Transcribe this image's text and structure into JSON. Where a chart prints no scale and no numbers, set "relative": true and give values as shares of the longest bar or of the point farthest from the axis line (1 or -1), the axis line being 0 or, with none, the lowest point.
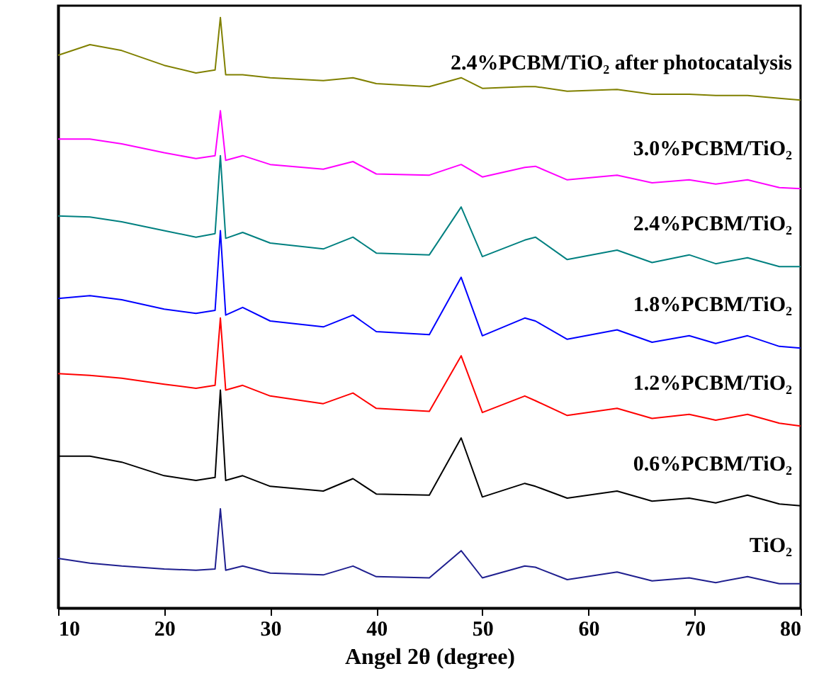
{
  "chart_data": {
    "type": "line",
    "relative": true,
    "xlabel": "Angel 2θ (degree)",
    "xlim": [
      10,
      80
    ],
    "xticks": [
      10,
      20,
      30,
      40,
      50,
      60,
      70,
      80
    ],
    "legend": false,
    "grid": false,
    "marker": "none",
    "line_style": "solid",
    "x": [
      10,
      13,
      16,
      20,
      23,
      24.8,
      25.3,
      25.8,
      27.4,
      30,
      35,
      37.8,
      40,
      45,
      48,
      50,
      54,
      55,
      58,
      62.7,
      66,
      69.5,
      72,
      75,
      78,
      80
    ],
    "series": [
      {
        "name": "TiO₂",
        "color": "#1f1f8f",
        "values": [
          0.084,
          0.076,
          0.071,
          0.066,
          0.064,
          0.066,
          0.168,
          0.064,
          0.071,
          0.059,
          0.056,
          0.071,
          0.053,
          0.051,
          0.097,
          0.051,
          0.071,
          0.069,
          0.048,
          0.061,
          0.046,
          0.051,
          0.043,
          0.053,
          0.041,
          0.041
        ]
      },
      {
        "name": "0.6%PCBM/TiO₂",
        "color": "#000000",
        "values": [
          0.257,
          0.257,
          0.247,
          0.224,
          0.216,
          0.221,
          0.369,
          0.216,
          0.224,
          0.206,
          0.198,
          0.219,
          0.193,
          0.191,
          0.288,
          0.188,
          0.211,
          0.206,
          0.186,
          0.198,
          0.181,
          0.186,
          0.178,
          0.191,
          0.176,
          0.173
        ]
      },
      {
        "name": "1.2%PCBM/TiO₂",
        "color": "#ff0000",
        "values": [
          0.397,
          0.394,
          0.389,
          0.379,
          0.372,
          0.377,
          0.491,
          0.369,
          0.377,
          0.359,
          0.346,
          0.364,
          0.338,
          0.333,
          0.427,
          0.331,
          0.359,
          0.351,
          0.326,
          0.338,
          0.321,
          0.328,
          0.318,
          0.328,
          0.313,
          0.308
        ]
      },
      {
        "name": "1.8%PCBM/TiO₂",
        "color": "#0000ff",
        "values": [
          0.524,
          0.529,
          0.522,
          0.506,
          0.499,
          0.504,
          0.639,
          0.496,
          0.509,
          0.486,
          0.476,
          0.496,
          0.468,
          0.463,
          0.56,
          0.461,
          0.491,
          0.486,
          0.455,
          0.471,
          0.45,
          0.461,
          0.448,
          0.461,
          0.443,
          0.44
        ]
      },
      {
        "name": "2.4%PCBM/TiO₂",
        "color": "#008080",
        "values": [
          0.664,
          0.662,
          0.654,
          0.639,
          0.628,
          0.634,
          0.766,
          0.626,
          0.636,
          0.618,
          0.608,
          0.628,
          0.601,
          0.598,
          0.679,
          0.595,
          0.623,
          0.628,
          0.59,
          0.606,
          0.585,
          0.598,
          0.583,
          0.593,
          0.578,
          0.578
        ]
      },
      {
        "name": "3.0%PCBM/TiO₂",
        "color": "#ff00ff",
        "values": [
          0.794,
          0.794,
          0.786,
          0.771,
          0.761,
          0.766,
          0.842,
          0.758,
          0.766,
          0.751,
          0.743,
          0.756,
          0.735,
          0.733,
          0.751,
          0.73,
          0.746,
          0.748,
          0.725,
          0.733,
          0.72,
          0.725,
          0.718,
          0.725,
          0.712,
          0.71
        ]
      },
      {
        "name": "2.4%PCBM/TiO₂ after photocatalysis",
        "color": "#808000",
        "values": [
          0.936,
          0.954,
          0.944,
          0.919,
          0.906,
          0.911,
          1,
          0.903,
          0.903,
          0.898,
          0.893,
          0.898,
          0.888,
          0.883,
          0.898,
          0.88,
          0.883,
          0.883,
          0.875,
          0.878,
          0.87,
          0.87,
          0.868,
          0.868,
          0.863,
          0.86
        ]
      }
    ]
  }
}
